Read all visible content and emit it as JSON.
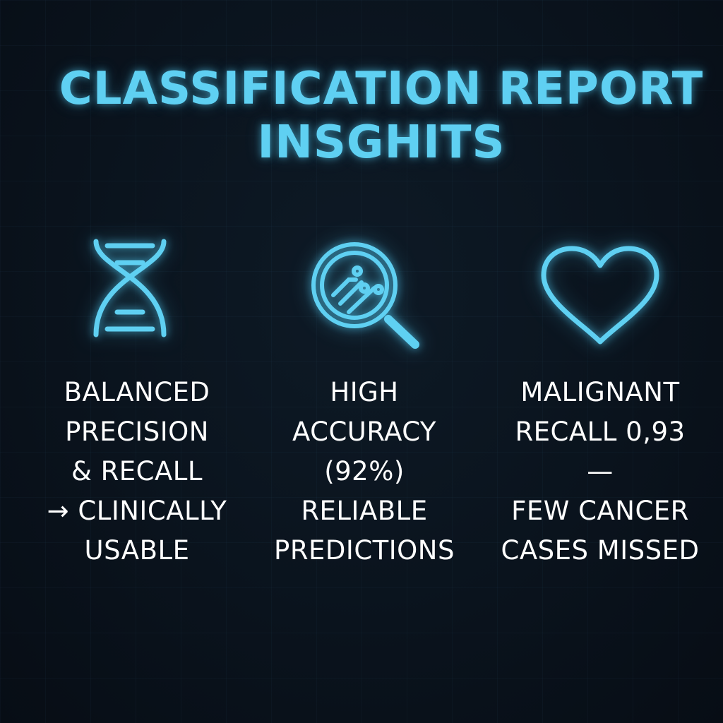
{
  "title": {
    "line1": "CLASSIFICATION REPORT",
    "line2": "INSGHITS"
  },
  "accent_color": "#5fd0f2",
  "background_color": "#0a131d",
  "insights": [
    {
      "icon": "dna-icon",
      "lines": [
        "BALANCED",
        "PRECISION",
        "& RECALL",
        "→ CLINICALLY",
        "USABLE"
      ]
    },
    {
      "icon": "magnifier-icon",
      "lines": [
        "HIGH",
        "ACCURACY",
        "(92%)",
        "RELIABLE",
        "PREDICTIONS"
      ]
    },
    {
      "icon": "heart-icon",
      "lines": [
        "MALIGNANT",
        "RECALL 0,93",
        "—",
        "FEW CANCER",
        "CASES MISSED"
      ]
    }
  ]
}
